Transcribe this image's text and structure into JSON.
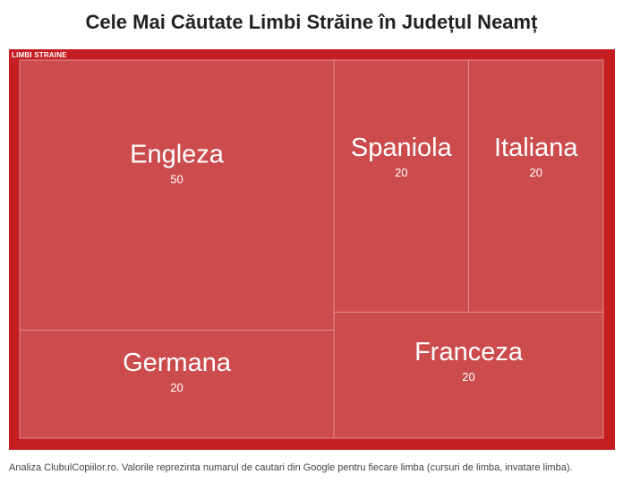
{
  "title": "Cele Mai Căutate Limbi Străine în Județul Neamț",
  "note": "Analiza ClubulCopiilor.ro. Valorile reprezinta numarul de cautari din Google pentru fiecare limba (cursuri de limba, invatare limba).",
  "colors": {
    "root": "#c41e23",
    "leaf": "#cc4c4e",
    "border": "#e58a8c"
  },
  "chart_data": {
    "type": "treemap",
    "root": "LIMBI STRAINE",
    "items": [
      {
        "name": "Engleza",
        "value": 50
      },
      {
        "name": "Germana",
        "value": 20
      },
      {
        "name": "Spaniola",
        "value": 20
      },
      {
        "name": "Italiana",
        "value": 20
      },
      {
        "name": "Franceza",
        "value": 20
      }
    ]
  }
}
